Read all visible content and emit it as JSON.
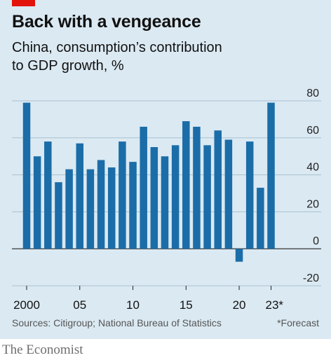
{
  "title": "Back with a vengeance",
  "subtitle_line1": "China, consumption’s contribution",
  "subtitle_line2": "to GDP growth, %",
  "source": "Sources: Citigroup; National Bureau of Statistics",
  "footnote": "*Forecast",
  "brand": "The Economist",
  "colors": {
    "background": "#dbe9f2",
    "bar": "#1b6da8",
    "accent": "#e3120b"
  },
  "chart_data": {
    "type": "bar",
    "title": "Back with a vengeance",
    "subtitle": "China, consumption’s contribution to GDP growth, %",
    "x": [
      2000,
      2001,
      2002,
      2003,
      2004,
      2005,
      2006,
      2007,
      2008,
      2009,
      2010,
      2011,
      2012,
      2013,
      2014,
      2015,
      2016,
      2017,
      2018,
      2019,
      2020,
      2021,
      2022,
      2023
    ],
    "values": [
      79,
      50,
      58,
      36,
      43,
      57,
      43,
      48,
      44,
      58,
      47,
      66,
      55,
      50,
      56,
      69,
      66,
      56,
      64,
      59,
      -7,
      58,
      33,
      79
    ],
    "ylim": [
      -20,
      80
    ],
    "yticks": [
      -20,
      0,
      20,
      40,
      60,
      80
    ],
    "ytick_labels": [
      "-20",
      "0",
      "20",
      "40",
      "60",
      "80"
    ],
    "xtick_years": [
      2000,
      2005,
      2010,
      2015,
      2020,
      2023
    ],
    "xtick_labels": [
      "2000",
      "05",
      "10",
      "15",
      "20",
      "23*"
    ],
    "forecast_year": 2023,
    "y_axis_side": "right",
    "grid": true
  }
}
